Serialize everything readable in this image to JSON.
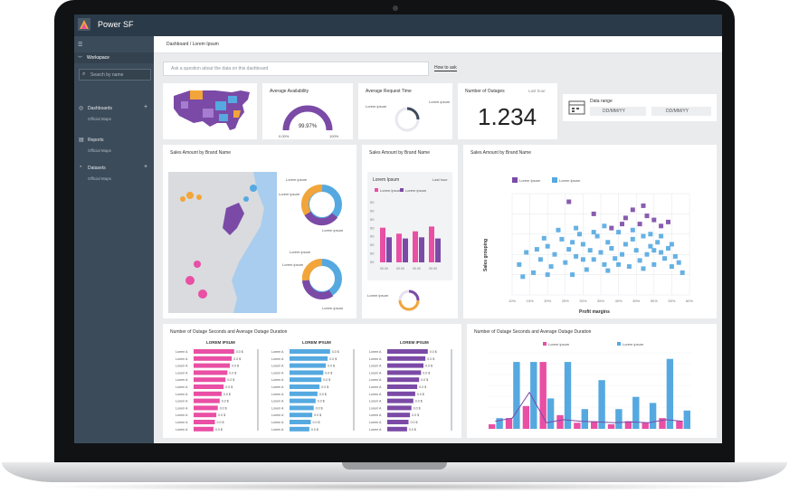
{
  "app": {
    "title": "Power SF"
  },
  "sidebar": {
    "workspace": "Workspace",
    "search_placeholder": "Search by name",
    "sections": [
      {
        "label": "Dashboards",
        "sub": "Official Maps"
      },
      {
        "label": "Reports",
        "sub": "Official Maps"
      },
      {
        "label": "Datasets",
        "sub": "Official Maps"
      }
    ]
  },
  "breadcrumb": "Dashboard / Lorem Ipsum",
  "qa": {
    "placeholder": "Ask a question about the data on this dashboard",
    "help": "How to ask"
  },
  "tiles": {
    "availability": {
      "title": "Average Availability",
      "value": "99.97%",
      "min": "0.00%",
      "max": "100%",
      "fraction": 0.9997
    },
    "request_time": {
      "title": "Average Request Time",
      "label_left": "Lorem ipsum",
      "label_right": "Lorem ipsum"
    },
    "outages": {
      "title": "Number of Outages",
      "link": "Last hour",
      "value": "1.234"
    },
    "date_range": {
      "label": "Data range",
      "from": "DD/MM/YY",
      "to": "DD/MM/YY"
    }
  },
  "sales_map": {
    "title": "Sales Amount by Brand Name",
    "donut_label": "Lorem ipsum"
  },
  "sales_bars": {
    "title": "Sales Amount by Brand Name",
    "panel": "Lorem Ipsum",
    "link": "Last hour",
    "legend": [
      "Lorem ipsum",
      "Lorem ipsum"
    ],
    "bottom_label": "Lorem ipsum"
  },
  "scatter": {
    "title": "Sales Amount by Brand Name",
    "legend": [
      "Lorem Ipsum",
      "Lorem Ipsum"
    ]
  },
  "outage_lists": {
    "title": "Number of Outage Seconds and Average Outage Duration",
    "headers": [
      "LOREM IPSUM",
      "LOREM IPSUM",
      "LOREM IPSUM"
    ],
    "row_label": "Lorem A"
  },
  "combo": {
    "title": "Number of Outage Seconds and Average Outage Duration",
    "legend": [
      "Lorem ipsum",
      "Lorem ipsum"
    ]
  },
  "chart_data": [
    {
      "type": "bar",
      "title": "Sales Amount by Brand Name",
      "categories": [
        "00.00",
        "00.00",
        "00.00",
        "00.00"
      ],
      "series": [
        {
          "values": [
            58,
            48,
            52,
            60
          ]
        },
        {
          "values": [
            42,
            40,
            42,
            40
          ]
        }
      ],
      "y_ticks": [
        "00",
        "00",
        "00",
        "00",
        "00",
        "00",
        "00",
        "00"
      ],
      "ylim": [
        0,
        100
      ],
      "colors": [
        "#e94fa4",
        "#7b4aa6"
      ]
    },
    {
      "type": "scatter",
      "title": "Sales Amount by Brand Name",
      "xlabel": "Profit margins",
      "ylabel": "Sales grouping",
      "x_ticks": [
        "10%",
        "15%",
        "20%",
        "25%",
        "30%",
        "35%",
        "40%",
        "45%",
        "50%",
        "55%",
        "60%"
      ],
      "y_ticks": [
        "",
        "",
        "",
        "",
        ""
      ],
      "xlim": [
        10,
        60
      ],
      "ylim": [
        0,
        100
      ],
      "colors": [
        "#7b4aa6",
        "#55a9e0"
      ],
      "series": [
        {
          "points": [
            [
              26,
              92
            ],
            [
              33,
              80
            ],
            [
              42,
              76
            ],
            [
              44,
              84
            ],
            [
              46,
              70
            ],
            [
              48,
              78
            ],
            [
              50,
              74
            ],
            [
              52,
              68
            ],
            [
              47,
              88
            ],
            [
              41,
              70
            ],
            [
              38,
              66
            ],
            [
              54,
              72
            ]
          ]
        },
        {
          "points": [
            [
              12,
              30
            ],
            [
              14,
              42
            ],
            [
              16,
              22
            ],
            [
              18,
              35
            ],
            [
              20,
              48
            ],
            [
              21,
              28
            ],
            [
              22,
              40
            ],
            [
              24,
              55
            ],
            [
              25,
              32
            ],
            [
              26,
              45
            ],
            [
              27,
              20
            ],
            [
              28,
              38
            ],
            [
              29,
              60
            ],
            [
              30,
              50
            ],
            [
              31,
              25
            ],
            [
              32,
              44
            ],
            [
              33,
              35
            ],
            [
              34,
              58
            ],
            [
              35,
              42
            ],
            [
              36,
              30
            ],
            [
              37,
              52
            ],
            [
              38,
              46
            ],
            [
              39,
              36
            ],
            [
              40,
              62
            ],
            [
              41,
              40
            ],
            [
              42,
              50
            ],
            [
              43,
              28
            ],
            [
              44,
              55
            ],
            [
              45,
              44
            ],
            [
              46,
              34
            ],
            [
              47,
              58
            ],
            [
              48,
              40
            ],
            [
              49,
              48
            ],
            [
              50,
              30
            ],
            [
              51,
              52
            ],
            [
              52,
              42
            ],
            [
              53,
              36
            ],
            [
              54,
              46
            ],
            [
              55,
              28
            ],
            [
              56,
              38
            ],
            [
              57,
              32
            ],
            [
              58,
              22
            ],
            [
              13,
              18
            ],
            [
              19,
              56
            ],
            [
              23,
              64
            ],
            [
              28,
              66
            ],
            [
              33,
              62
            ],
            [
              36,
              68
            ],
            [
              44,
              64
            ],
            [
              49,
              60
            ],
            [
              52,
              58
            ],
            [
              17,
              45
            ],
            [
              27,
              52
            ],
            [
              37,
              24
            ],
            [
              47,
              26
            ],
            [
              20,
              20
            ],
            [
              30,
              35
            ],
            [
              40,
              30
            ],
            [
              50,
              44
            ],
            [
              55,
              50
            ]
          ]
        }
      ]
    },
    {
      "type": "bar",
      "title": "Number of Outage Seconds and Average Outage Duration",
      "categories": [
        "Lorem A",
        "Lorem A",
        "Lorem A",
        "Lorem A",
        "Lorem A",
        "Lorem A",
        "Lorem A",
        "Lorem A",
        "Lorem A",
        "Lorem A",
        "Lorem A",
        "Lorem A"
      ],
      "series": [
        {
          "name": "LOREM IPSUM",
          "values": [
            8.4,
            7.9,
            7.5,
            7.0,
            6.6,
            6.2,
            5.8,
            5.4,
            5.0,
            4.7,
            4.4,
            4.1
          ],
          "labels": [
            "0.0 $",
            "0.0 $",
            "0.0 $",
            "0.0 $",
            "0.0 $",
            "0.0 $",
            "0.0 $",
            "0.0 $",
            "0.0 $",
            "0.0 $",
            "0.0 $",
            "0.0 $"
          ]
        },
        {
          "name": "LOREM IPSUM",
          "values": [
            8.4,
            7.9,
            7.5,
            7.0,
            6.6,
            6.2,
            5.8,
            5.4,
            5.0,
            4.7,
            4.4,
            4.1
          ],
          "labels": [
            "0.0 $",
            "0.0 $",
            "0.0 $",
            "0.0 $",
            "0.0 $",
            "0.0 $",
            "0.0 $",
            "0.0 $",
            "0.0 $",
            "0.0 $",
            "0.0 $",
            "0.0 $"
          ]
        },
        {
          "name": "LOREM IPSUM",
          "values": [
            8.4,
            7.9,
            7.5,
            7.0,
            6.6,
            6.2,
            5.8,
            5.4,
            5.0,
            4.7,
            4.4,
            4.1
          ],
          "labels": [
            "0.0 $",
            "0.0 $",
            "0.0 $",
            "0.0 $",
            "0.0 $",
            "0.0 $",
            "0.0 $",
            "0.0 $",
            "0.0 $",
            "0.0 $",
            "0.0 $",
            "0.0 $"
          ]
        }
      ],
      "colors": [
        "#e94fa4",
        "#55a9e0",
        "#7b4aa6"
      ]
    },
    {
      "type": "bar",
      "title": "Number of Outage Seconds and Average Outage Duration",
      "categories": [
        "1",
        "2",
        "3",
        "4",
        "5",
        "6",
        "7",
        "8",
        "9",
        "10",
        "11",
        "12"
      ],
      "series": [
        {
          "name": "Lorem ipsum",
          "values": [
            6,
            14,
            30,
            88,
            18,
            8,
            10,
            6,
            10,
            8,
            14,
            10
          ]
        },
        {
          "name": "Lorem ipsum",
          "values": [
            14,
            88,
            88,
            40,
            88,
            26,
            64,
            26,
            42,
            34,
            92,
            24
          ]
        }
      ],
      "line": [
        10,
        14,
        48,
        8,
        12,
        10,
        9,
        8,
        9,
        8,
        12,
        10
      ],
      "ylim": [
        0,
        100
      ],
      "left_ticks": [
        "",
        "",
        "",
        "",
        "",
        "",
        "",
        ""
      ],
      "right_ticks": [
        "",
        "",
        "",
        "",
        "",
        "",
        ""
      ],
      "colors": [
        "#e94fa4",
        "#55a9e0",
        "#7b4aa6"
      ]
    }
  ]
}
